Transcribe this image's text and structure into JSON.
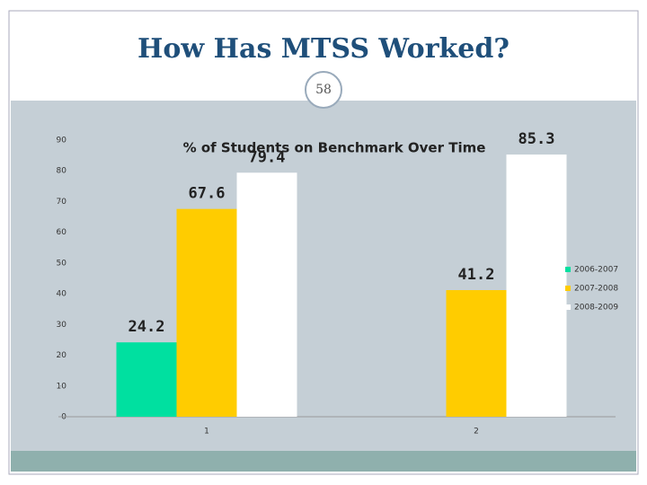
{
  "slide": {
    "title": "How Has MTSS Worked?",
    "number": "58"
  },
  "chart_data": {
    "type": "bar",
    "title": "% of Students on Benchmark Over Time",
    "categories": [
      "1",
      "2"
    ],
    "series": [
      {
        "name": "2006-2007",
        "color": "#00e0a0",
        "values": [
          24.2,
          null
        ]
      },
      {
        "name": "2007-2008",
        "color": "#ffcc00",
        "values": [
          67.6,
          41.2
        ]
      },
      {
        "name": "2008-2009",
        "color": "#ffffff",
        "values": [
          79.4,
          85.3
        ]
      }
    ],
    "ylim": [
      0,
      90
    ],
    "yticks": [
      0,
      10,
      20,
      30,
      40,
      50,
      60,
      70,
      80,
      90
    ],
    "grid": false,
    "legend": "right"
  }
}
